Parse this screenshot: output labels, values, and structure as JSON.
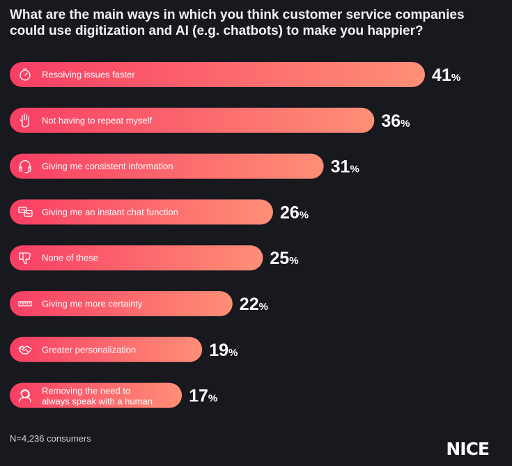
{
  "chart_data": {
    "type": "bar",
    "orientation": "horizontal",
    "title": "What are the main ways in which you think customer service companies could use digitization and AI (e.g. chatbots) to make you happier?",
    "categories": [
      "Resolving issues faster",
      "Not having to repeat myself",
      "Giving me consistent information",
      "Giving me an instant chat function",
      "None of these",
      "Giving me more certainty",
      "Greater personalization",
      "Removing the need to always speak with a human"
    ],
    "values": [
      41,
      36,
      31,
      26,
      25,
      22,
      19,
      17
    ],
    "unit": "%",
    "icons": [
      "stopwatch-icon",
      "hand-icon",
      "headset-icon",
      "chat-bubbles-icon",
      "thumbs-down-icon",
      "ruler-icon",
      "handshake-icon",
      "agent-icon"
    ],
    "xlabel": "",
    "ylabel": "",
    "xlim": [
      0,
      41
    ]
  },
  "footnote": "N=4,236 consumers",
  "brand": "NICE",
  "colors": {
    "background": "#17191f",
    "bar_start": "#f83e64",
    "bar_end": "#ff8f76",
    "text": "#ffffff"
  }
}
